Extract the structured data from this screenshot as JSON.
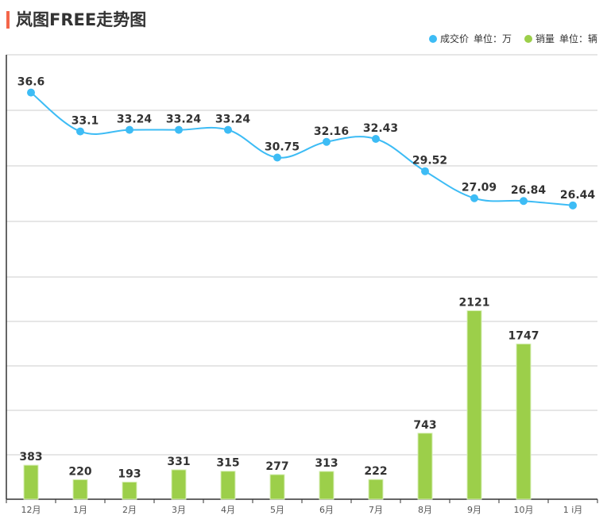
{
  "title": "岚图FREE走势图",
  "legend": [
    {
      "name": "成交价",
      "unit": "单位：万",
      "color": "#3dbcf5"
    },
    {
      "name": "销量",
      "unit": "单位：辆",
      "color": "#9ccf4a"
    }
  ],
  "chart_data": [
    {
      "type": "line",
      "title": "岚图FREE走势图",
      "series_name": "成交价",
      "unit": "单位：万",
      "color": "#3dbcf5",
      "categories": [
        "12月",
        "1月",
        "2月",
        "3月",
        "4月",
        "5月",
        "6月",
        "7月",
        "8月",
        "9月",
        "10月",
        "1 i月"
      ],
      "values": [
        36.6,
        33.1,
        33.24,
        33.24,
        33.24,
        30.75,
        32.16,
        32.43,
        29.52,
        27.09,
        26.84,
        26.44
      ],
      "ylim": [
        20,
        40
      ],
      "grid": true
    },
    {
      "type": "bar",
      "series_name": "销量",
      "unit": "单位：辆",
      "color": "#9ccf4a",
      "categories": [
        "12月",
        "1月",
        "2月",
        "3月",
        "4月",
        "5月",
        "6月",
        "7月",
        "8月",
        "9月",
        "10月",
        "1 i月"
      ],
      "values": [
        383,
        220,
        193,
        331,
        315,
        277,
        313,
        222,
        743,
        2121,
        1747,
        null
      ],
      "ylim": [
        0,
        2500
      ],
      "grid": true
    }
  ]
}
